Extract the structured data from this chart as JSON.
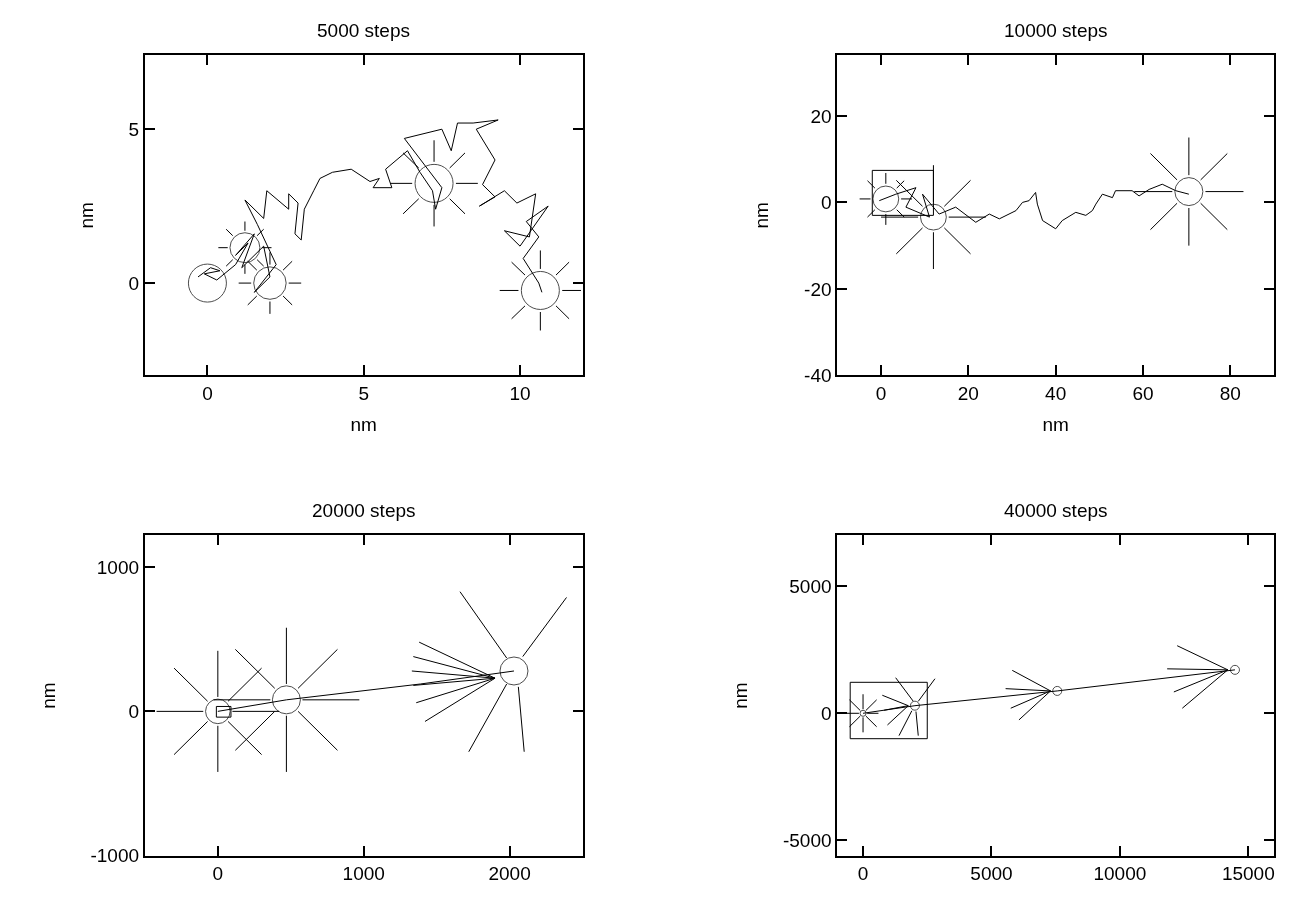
{
  "chart_data": [
    {
      "type": "line",
      "title": "5000 steps",
      "xlabel": "nm",
      "ylabel": "nm",
      "xlim": [
        -2,
        12
      ],
      "ylim": [
        -3,
        7.4
      ],
      "xticks": [
        0,
        5,
        10
      ],
      "yticks": [
        0,
        5
      ],
      "series": [
        {
          "color": "#000000",
          "x": [
            -0.3,
            0.1,
            0.4,
            -0.1,
            0.3,
            0.9,
            1.3,
            0.9,
            1.5,
            1.1,
            1.8,
            2.0,
            1.5,
            2.2,
            1.6,
            1.2,
            1.8,
            1.9,
            2.6,
            2.6,
            2.9,
            2.8,
            3.0,
            3.1,
            3.4,
            3.6,
            4.0,
            4.6,
            5.2,
            5.5,
            5.3,
            5.9,
            5.7,
            6.4,
            6.8,
            7.2,
            7.3,
            7.5,
            6.3,
            7.5,
            7.8,
            8.0,
            8.5,
            9.3,
            8.6,
            9.2,
            8.8,
            9.2,
            8.7,
            9.5,
            9.9,
            10.5,
            10.3,
            9.5,
            10.0,
            10.9,
            10.2,
            10.6,
            10.1,
            10.6,
            10.7
          ],
          "values": [
            0.2,
            0.5,
            0.4,
            0.3,
            0.1,
            0.6,
            1.3,
            0.9,
            1.6,
            0.5,
            1.2,
            0.2,
            -0.3,
            0.6,
            1.9,
            2.7,
            2.1,
            3.0,
            2.4,
            2.9,
            2.6,
            1.6,
            1.4,
            2.4,
            3.0,
            3.4,
            3.6,
            3.7,
            3.3,
            3.4,
            3.1,
            3.1,
            3.7,
            4.3,
            3.6,
            3.0,
            2.4,
            3.1,
            4.7,
            5.0,
            4.3,
            5.2,
            5.2,
            5.3,
            5.0,
            4.0,
            3.2,
            2.8,
            2.5,
            3.0,
            2.6,
            2.9,
            1.5,
            1.7,
            1.2,
            2.5,
            2.0,
            1.5,
            0.8,
            0.0,
            -0.3
          ]
        },
        {
          "color": "#000000",
          "x": [
            7.95,
            8.65
          ],
          "values": [
            3.24,
            3.24
          ]
        },
        {
          "color": "#000000",
          "x": [
            7.75,
            8.24
          ],
          "values": [
            3.74,
            4.23
          ]
        },
        {
          "color": "#000000",
          "x": [
            7.25,
            7.25
          ],
          "values": [
            3.94,
            4.64
          ]
        },
        {
          "color": "#000000",
          "x": [
            6.76,
            6.26
          ],
          "values": [
            3.74,
            4.23
          ]
        },
        {
          "color": "#000000",
          "x": [
            6.55,
            5.85
          ],
          "values": [
            3.24,
            3.24
          ]
        },
        {
          "color": "#000000",
          "x": [
            6.76,
            6.26
          ],
          "values": [
            2.74,
            2.25
          ]
        },
        {
          "color": "#000000",
          "x": [
            7.25,
            7.25
          ],
          "values": [
            2.54,
            1.84
          ]
        },
        {
          "color": "#000000",
          "x": [
            7.75,
            8.24
          ],
          "values": [
            2.74,
            2.25
          ]
        },
        {
          "color": "#000000",
          "x": [
            11.35,
            11.95
          ],
          "values": [
            -0.24,
            -0.24
          ]
        },
        {
          "color": "#000000",
          "x": [
            11.15,
            11.57
          ],
          "values": [
            0.26,
            0.68
          ]
        },
        {
          "color": "#000000",
          "x": [
            10.65,
            10.65
          ],
          "values": [
            0.46,
            1.06
          ]
        },
        {
          "color": "#000000",
          "x": [
            10.16,
            9.73
          ],
          "values": [
            0.26,
            0.68
          ]
        },
        {
          "color": "#000000",
          "x": [
            9.95,
            9.35
          ],
          "values": [
            -0.24,
            -0.24
          ]
        },
        {
          "color": "#000000",
          "x": [
            10.16,
            9.73
          ],
          "values": [
            -0.74,
            -1.16
          ]
        },
        {
          "color": "#000000",
          "x": [
            10.65,
            10.65
          ],
          "values": [
            -0.94,
            -1.54
          ]
        },
        {
          "color": "#000000",
          "x": [
            11.15,
            11.57
          ],
          "values": [
            -0.74,
            -1.16
          ]
        },
        {
          "color": "#000000",
          "x": [
            2.6,
            3.0
          ],
          "values": [
            0,
            0
          ]
        },
        {
          "color": "#000000",
          "x": [
            2.42,
            2.71
          ],
          "values": [
            0.42,
            0.71
          ]
        },
        {
          "color": "#000000",
          "x": [
            2,
            2
          ],
          "values": [
            0.6,
            1.0
          ]
        },
        {
          "color": "#000000",
          "x": [
            1.58,
            1.29
          ],
          "values": [
            0.42,
            0.71
          ]
        },
        {
          "color": "#000000",
          "x": [
            1.4,
            1.0
          ],
          "values": [
            0,
            0
          ]
        },
        {
          "color": "#000000",
          "x": [
            1.58,
            1.29
          ],
          "values": [
            -0.42,
            -0.71
          ]
        },
        {
          "color": "#000000",
          "x": [
            2,
            2
          ],
          "values": [
            -0.6,
            -1.0
          ]
        },
        {
          "color": "#000000",
          "x": [
            2.42,
            2.71
          ],
          "values": [
            -0.42,
            -0.71
          ]
        },
        {
          "color": "#000000",
          "x": [
            1.75,
            2.05
          ],
          "values": [
            1.15,
            1.15
          ]
        },
        {
          "color": "#000000",
          "x": [
            1.59,
            1.8
          ],
          "values": [
            1.54,
            1.75
          ]
        },
        {
          "color": "#000000",
          "x": [
            1.2,
            1.2
          ],
          "values": [
            1.7,
            2.0
          ]
        },
        {
          "color": "#000000",
          "x": [
            0.81,
            0.6
          ],
          "values": [
            1.54,
            1.75
          ]
        },
        {
          "color": "#000000",
          "x": [
            0.65,
            0.35
          ],
          "values": [
            1.15,
            1.15
          ]
        },
        {
          "color": "#000000",
          "x": [
            0.81,
            0.6
          ],
          "values": [
            0.76,
            0.55
          ]
        },
        {
          "color": "#000000",
          "x": [
            1.2,
            1.2
          ],
          "values": [
            0.6,
            0.3
          ]
        },
        {
          "color": "#000000",
          "x": [
            1.59,
            1.8
          ],
          "values": [
            0.76,
            0.55
          ]
        },
        {
          "type": "bubble",
          "color": "#000000",
          "x": [
            0,
            1.2,
            2.0,
            7.25,
            10.65
          ],
          "values": [
            0,
            1.15,
            0,
            3.24,
            -0.24
          ],
          "sizes": [
            1,
            0.62,
            0.73,
            1,
            1
          ]
        }
      ]
    },
    {
      "type": "line",
      "title": "10000 steps",
      "xlabel": "nm",
      "ylabel": "nm",
      "xlim": [
        -10,
        90
      ],
      "ylim": [
        -40,
        34
      ],
      "xticks": [
        0,
        20,
        40,
        60,
        80
      ],
      "yticks": [
        -40,
        -20,
        0,
        20
      ],
      "series": [
        {
          "color": "#000000",
          "x": [
            -2,
            12
          ],
          "values": [
            -3,
            -3
          ]
        },
        {
          "color": "#000000",
          "x": [
            12,
            12
          ],
          "values": [
            -3,
            7.4
          ]
        },
        {
          "color": "#000000",
          "x": [
            12,
            -2
          ],
          "values": [
            7.4,
            7.4
          ]
        },
        {
          "color": "#000000",
          "x": [
            -2,
            -2
          ],
          "values": [
            7.4,
            -3
          ]
        },
        {
          "color": "#000000",
          "x": [
            -0.4,
            3.4,
            8.0,
            5.7,
            11.1,
            9.5,
            13.3,
            17.1,
            21.7,
            24.8,
            27.1,
            30.9,
            32.4,
            33.9,
            35.4,
            35.8,
            37.0,
            40.0,
            41.5,
            44.6,
            46.9,
            48.4,
            49.2,
            50.7,
            53.0,
            53.7,
            57.5,
            59.1,
            61.4,
            64.4,
            67.5,
            70.5
          ],
          "values": [
            0.4,
            1.9,
            3.4,
            -1.1,
            -3.4,
            1.9,
            -2.7,
            -1.1,
            -4.6,
            -2.7,
            -3.8,
            -1.9,
            0,
            0.4,
            2.3,
            -0.4,
            -4.2,
            -6.1,
            -4.2,
            -2.3,
            -3.0,
            -1.9,
            -0.4,
            1.9,
            1.1,
            2.7,
            2.7,
            1.5,
            3.0,
            4.2,
            2.7,
            1.9
          ]
        },
        {
          "color": "#000000",
          "x": [
            74.3,
            83.0
          ],
          "values": [
            2.5,
            2.5
          ]
        },
        {
          "color": "#000000",
          "x": [
            73.2,
            79.3
          ],
          "values": [
            5.2,
            11.3
          ]
        },
        {
          "color": "#000000",
          "x": [
            70.5,
            70.5
          ],
          "values": [
            6.3,
            15.0
          ]
        },
        {
          "color": "#000000",
          "x": [
            67.8,
            61.7
          ],
          "values": [
            5.2,
            11.3
          ]
        },
        {
          "color": "#000000",
          "x": [
            66.7,
            58.0
          ],
          "values": [
            2.5,
            2.5
          ]
        },
        {
          "color": "#000000",
          "x": [
            67.8,
            61.7
          ],
          "values": [
            -0.2,
            -6.3
          ]
        },
        {
          "color": "#000000",
          "x": [
            70.5,
            70.5
          ],
          "values": [
            -1.3,
            -10.0
          ]
        },
        {
          "color": "#000000",
          "x": [
            73.2,
            79.3
          ],
          "values": [
            -0.2,
            -6.3
          ]
        },
        {
          "color": "#000000",
          "x": [
            15.5,
            24.0
          ],
          "values": [
            -3.4,
            -3.4
          ]
        },
        {
          "color": "#000000",
          "x": [
            14.5,
            20.5
          ],
          "values": [
            -0.9,
            5.1
          ]
        },
        {
          "color": "#000000",
          "x": [
            12,
            12
          ],
          "values": [
            0.1,
            8.6
          ]
        },
        {
          "color": "#000000",
          "x": [
            9.5,
            3.5
          ],
          "values": [
            -0.9,
            5.1
          ]
        },
        {
          "color": "#000000",
          "x": [
            8.5,
            0
          ],
          "values": [
            -3.4,
            -3.4
          ]
        },
        {
          "color": "#000000",
          "x": [
            9.5,
            3.5
          ],
          "values": [
            -5.9,
            -11.9
          ]
        },
        {
          "color": "#000000",
          "x": [
            12,
            12
          ],
          "values": [
            -6.9,
            -15.4
          ]
        },
        {
          "color": "#000000",
          "x": [
            14.5,
            20.5
          ],
          "values": [
            -5.9,
            -11.9
          ]
        },
        {
          "color": "#000000",
          "x": [
            4.6,
            7.1
          ],
          "values": [
            0.8,
            0.8
          ]
        },
        {
          "color": "#000000",
          "x": [
            3.6,
            5.3
          ],
          "values": [
            3.3,
            5.0
          ]
        },
        {
          "color": "#000000",
          "x": [
            1.1,
            1.1
          ],
          "values": [
            4.3,
            6.8
          ]
        },
        {
          "color": "#000000",
          "x": [
            -1.4,
            -3.1
          ],
          "values": [
            3.3,
            5.0
          ]
        },
        {
          "color": "#000000",
          "x": [
            -2.4,
            -4.9
          ],
          "values": [
            0.8,
            0.8
          ]
        },
        {
          "color": "#000000",
          "x": [
            -1.4,
            -3.1
          ],
          "values": [
            -1.7,
            -3.4
          ]
        },
        {
          "color": "#000000",
          "x": [
            1.1,
            1.1
          ],
          "values": [
            -2.7,
            -5.2
          ]
        },
        {
          "color": "#000000",
          "x": [
            3.6,
            5.3
          ],
          "values": [
            -1.7,
            -3.4
          ]
        },
        {
          "type": "bubble",
          "color": "#000000",
          "x": [
            1.1,
            12.0,
            70.5
          ],
          "values": [
            0.8,
            -3.4,
            2.5
          ],
          "sizes": [
            0.85,
            0.85,
            1
          ]
        }
      ]
    },
    {
      "type": "line",
      "title": "20000 steps",
      "ylabel": "nm",
      "xlim": [
        -500,
        2500
      ],
      "ylim": [
        -1000,
        1220
      ],
      "xticks": [
        0,
        1000,
        2000
      ],
      "yticks": [
        -1000,
        0,
        1000
      ],
      "series": [
        {
          "color": "#000000",
          "x": [
            -10,
            90
          ],
          "values": [
            -40,
            -40
          ]
        },
        {
          "color": "#000000",
          "x": [
            90,
            90
          ],
          "values": [
            -40,
            34
          ]
        },
        {
          "color": "#000000",
          "x": [
            90,
            -10
          ],
          "values": [
            34,
            34
          ]
        },
        {
          "color": "#000000",
          "x": [
            -10,
            -10
          ],
          "values": [
            34,
            -40
          ]
        },
        {
          "color": "#000000",
          "x": [
            0,
            470,
            1390,
            2030
          ],
          "values": [
            0,
            80,
            190,
            280
          ]
        },
        {
          "color": "#000000",
          "x": [
            580,
            970
          ],
          "values": [
            80,
            80
          ]
        },
        {
          "color": "#000000",
          "x": [
            550,
            820
          ],
          "values": [
            160,
            430
          ]
        },
        {
          "color": "#000000",
          "x": [
            470,
            470
          ],
          "values": [
            190,
            580
          ]
        },
        {
          "color": "#000000",
          "x": [
            390,
            120
          ],
          "values": [
            160,
            430
          ]
        },
        {
          "color": "#000000",
          "x": [
            360,
            -30
          ],
          "values": [
            80,
            80
          ]
        },
        {
          "color": "#000000",
          "x": [
            390,
            120
          ],
          "values": [
            0,
            -270
          ]
        },
        {
          "color": "#000000",
          "x": [
            470,
            470
          ],
          "values": [
            -30,
            -420
          ]
        },
        {
          "color": "#000000",
          "x": [
            550,
            820
          ],
          "values": [
            0,
            -270
          ]
        },
        {
          "color": "#000000",
          "x": [
            100,
            420
          ],
          "values": [
            0,
            0
          ]
        },
        {
          "color": "#000000",
          "x": [
            70,
            300
          ],
          "values": [
            70,
            300
          ]
        },
        {
          "color": "#000000",
          "x": [
            0,
            0
          ],
          "values": [
            100,
            420
          ]
        },
        {
          "color": "#000000",
          "x": [
            -70,
            -300
          ],
          "values": [
            70,
            300
          ]
        },
        {
          "color": "#000000",
          "x": [
            -100,
            -420
          ],
          "values": [
            0,
            0
          ]
        },
        {
          "color": "#000000",
          "x": [
            -70,
            -300
          ],
          "values": [
            -70,
            -300
          ]
        },
        {
          "color": "#000000",
          "x": [
            0,
            0
          ],
          "values": [
            -100,
            -420
          ]
        },
        {
          "color": "#000000",
          "x": [
            70,
            300
          ],
          "values": [
            -70,
            -300
          ]
        },
        {
          "color": "#000000",
          "x": [
            1900,
            1380
          ],
          "values": [
            230,
            480
          ]
        },
        {
          "color": "#000000",
          "x": [
            1900,
            1340
          ],
          "values": [
            230,
            380
          ]
        },
        {
          "color": "#000000",
          "x": [
            1900,
            1330
          ],
          "values": [
            230,
            280
          ]
        },
        {
          "color": "#000000",
          "x": [
            1900,
            1340
          ],
          "values": [
            230,
            180
          ]
        },
        {
          "color": "#000000",
          "x": [
            1900,
            1360
          ],
          "values": [
            230,
            60
          ]
        },
        {
          "color": "#000000",
          "x": [
            1900,
            1420
          ],
          "values": [
            230,
            -70
          ]
        },
        {
          "color": "#000000",
          "x": [
            1980,
            1660
          ],
          "values": [
            370,
            830
          ]
        },
        {
          "color": "#000000",
          "x": [
            2090,
            2390
          ],
          "values": [
            380,
            790
          ]
        },
        {
          "color": "#000000",
          "x": [
            1980,
            1720
          ],
          "values": [
            190,
            -280
          ]
        },
        {
          "color": "#000000",
          "x": [
            2060,
            2100
          ],
          "values": [
            170,
            -280
          ]
        },
        {
          "type": "bubble",
          "color": "#000000",
          "x": [
            0,
            470,
            2030
          ],
          "values": [
            0,
            80,
            280
          ],
          "sizes": [
            0.77,
            1,
            1
          ]
        }
      ]
    },
    {
      "type": "line",
      "title": "40000 steps",
      "ylabel": "nm",
      "xlim": [
        -1000,
        16000
      ],
      "ylim": [
        -5600,
        7000
      ],
      "xticks": [
        0,
        5000,
        10000,
        15000
      ],
      "yticks": [
        -5000,
        0,
        5000
      ],
      "series": [
        {
          "color": "#000000",
          "x": [
            -500,
            2500
          ],
          "values": [
            -1000,
            -1000
          ]
        },
        {
          "color": "#000000",
          "x": [
            2500,
            2500
          ],
          "values": [
            -1000,
            1220
          ]
        },
        {
          "color": "#000000",
          "x": [
            2500,
            -500
          ],
          "values": [
            1220,
            1220
          ]
        },
        {
          "color": "#000000",
          "x": [
            -500,
            -500
          ],
          "values": [
            1220,
            -1000
          ]
        },
        {
          "color": "#000000",
          "x": [
            0,
            2020,
            7560,
            14480
          ],
          "values": [
            0,
            300,
            880,
            1710
          ]
        },
        {
          "color": "#000000",
          "x": [
            160,
            600
          ],
          "values": [
            0,
            0
          ]
        },
        {
          "color": "#000000",
          "x": [
            110,
            530
          ],
          "values": [
            110,
            530
          ]
        },
        {
          "color": "#000000",
          "x": [
            0,
            0
          ],
          "values": [
            160,
            750
          ]
        },
        {
          "color": "#000000",
          "x": [
            -110,
            -530
          ],
          "values": [
            110,
            530
          ]
        },
        {
          "color": "#000000",
          "x": [
            -160,
            -750
          ],
          "values": [
            0,
            0
          ]
        },
        {
          "color": "#000000",
          "x": [
            -110,
            -530
          ],
          "values": [
            -110,
            -530
          ]
        },
        {
          "color": "#000000",
          "x": [
            0,
            0
          ],
          "values": [
            -160,
            -750
          ]
        },
        {
          "color": "#000000",
          "x": [
            110,
            530
          ],
          "values": [
            -110,
            -530
          ]
        },
        {
          "color": "#000000",
          "x": [
            1760,
            750
          ],
          "values": [
            300,
            710
          ]
        },
        {
          "color": "#000000",
          "x": [
            1760,
            820
          ],
          "values": [
            300,
            120
          ]
        },
        {
          "color": "#000000",
          "x": [
            1760,
            950
          ],
          "values": [
            300,
            -460
          ]
        },
        {
          "color": "#000000",
          "x": [
            1950,
            1270
          ],
          "values": [
            480,
            1400
          ]
        },
        {
          "color": "#000000",
          "x": [
            2150,
            2800
          ],
          "values": [
            470,
            1360
          ]
        },
        {
          "color": "#000000",
          "x": [
            1900,
            1400
          ],
          "values": [
            100,
            -880
          ]
        },
        {
          "color": "#000000",
          "x": [
            2060,
            2150
          ],
          "values": [
            70,
            -880
          ]
        },
        {
          "color": "#000000",
          "x": [
            7300,
            5810
          ],
          "values": [
            880,
            1690
          ]
        },
        {
          "color": "#000000",
          "x": [
            7300,
            5550
          ],
          "values": [
            880,
            970
          ]
        },
        {
          "color": "#000000",
          "x": [
            7300,
            5750
          ],
          "values": [
            880,
            200
          ]
        },
        {
          "color": "#000000",
          "x": [
            7300,
            6070
          ],
          "values": [
            880,
            -260
          ]
        },
        {
          "color": "#000000",
          "x": [
            14200,
            12230
          ],
          "values": [
            1710,
            2660
          ]
        },
        {
          "color": "#000000",
          "x": [
            14200,
            11840
          ],
          "values": [
            1710,
            1750
          ]
        },
        {
          "color": "#000000",
          "x": [
            14200,
            12100
          ],
          "values": [
            1710,
            840
          ]
        },
        {
          "color": "#000000",
          "x": [
            14200,
            12430
          ],
          "values": [
            1710,
            200
          ]
        },
        {
          "type": "bubble",
          "color": "#000000",
          "x": [
            0,
            2020,
            7560,
            14480
          ],
          "values": [
            0,
            300,
            880,
            1710
          ],
          "sizes": [
            0.45,
            1,
            1,
            1
          ]
        }
      ]
    }
  ]
}
